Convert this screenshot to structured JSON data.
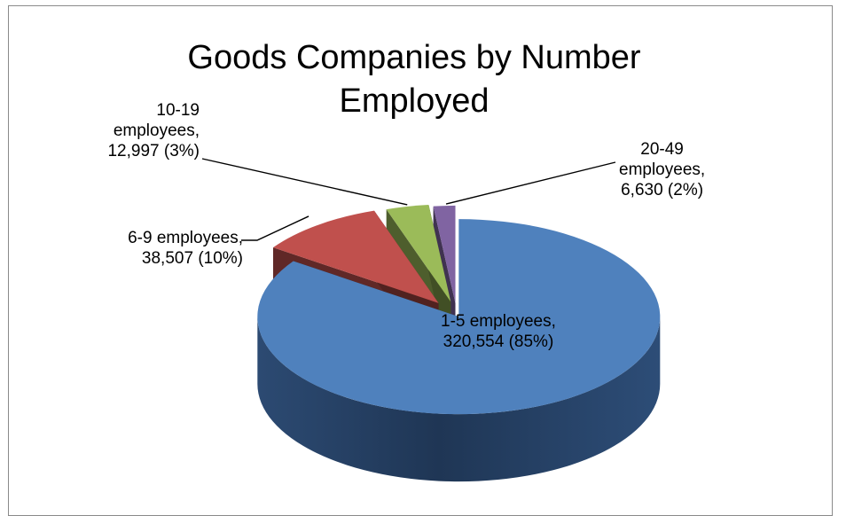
{
  "chart_data": {
    "type": "pie",
    "style": "3d-exploded",
    "title": [
      "Goods Companies by Number",
      "Employed"
    ],
    "categories": [
      "1-5 employees",
      "6-9 employees",
      "10-19 employees",
      "20-49 employees"
    ],
    "values": [
      320554,
      38507,
      12997,
      6630
    ],
    "percents": [
      85,
      10,
      3,
      2
    ],
    "labels": [
      [
        "1-5 employees,",
        "320,554   (85%)"
      ],
      [
        "6-9 employees,",
        "38,507  (10%)"
      ],
      [
        "10-19",
        "employees,",
        "12,997  (3%)"
      ],
      [
        "20-49",
        "employees,",
        "6,630  (2%)"
      ]
    ],
    "colors": [
      "#4F81BD",
      "#C0504D",
      "#9BBB59",
      "#8064A2"
    ],
    "legend": "none"
  }
}
